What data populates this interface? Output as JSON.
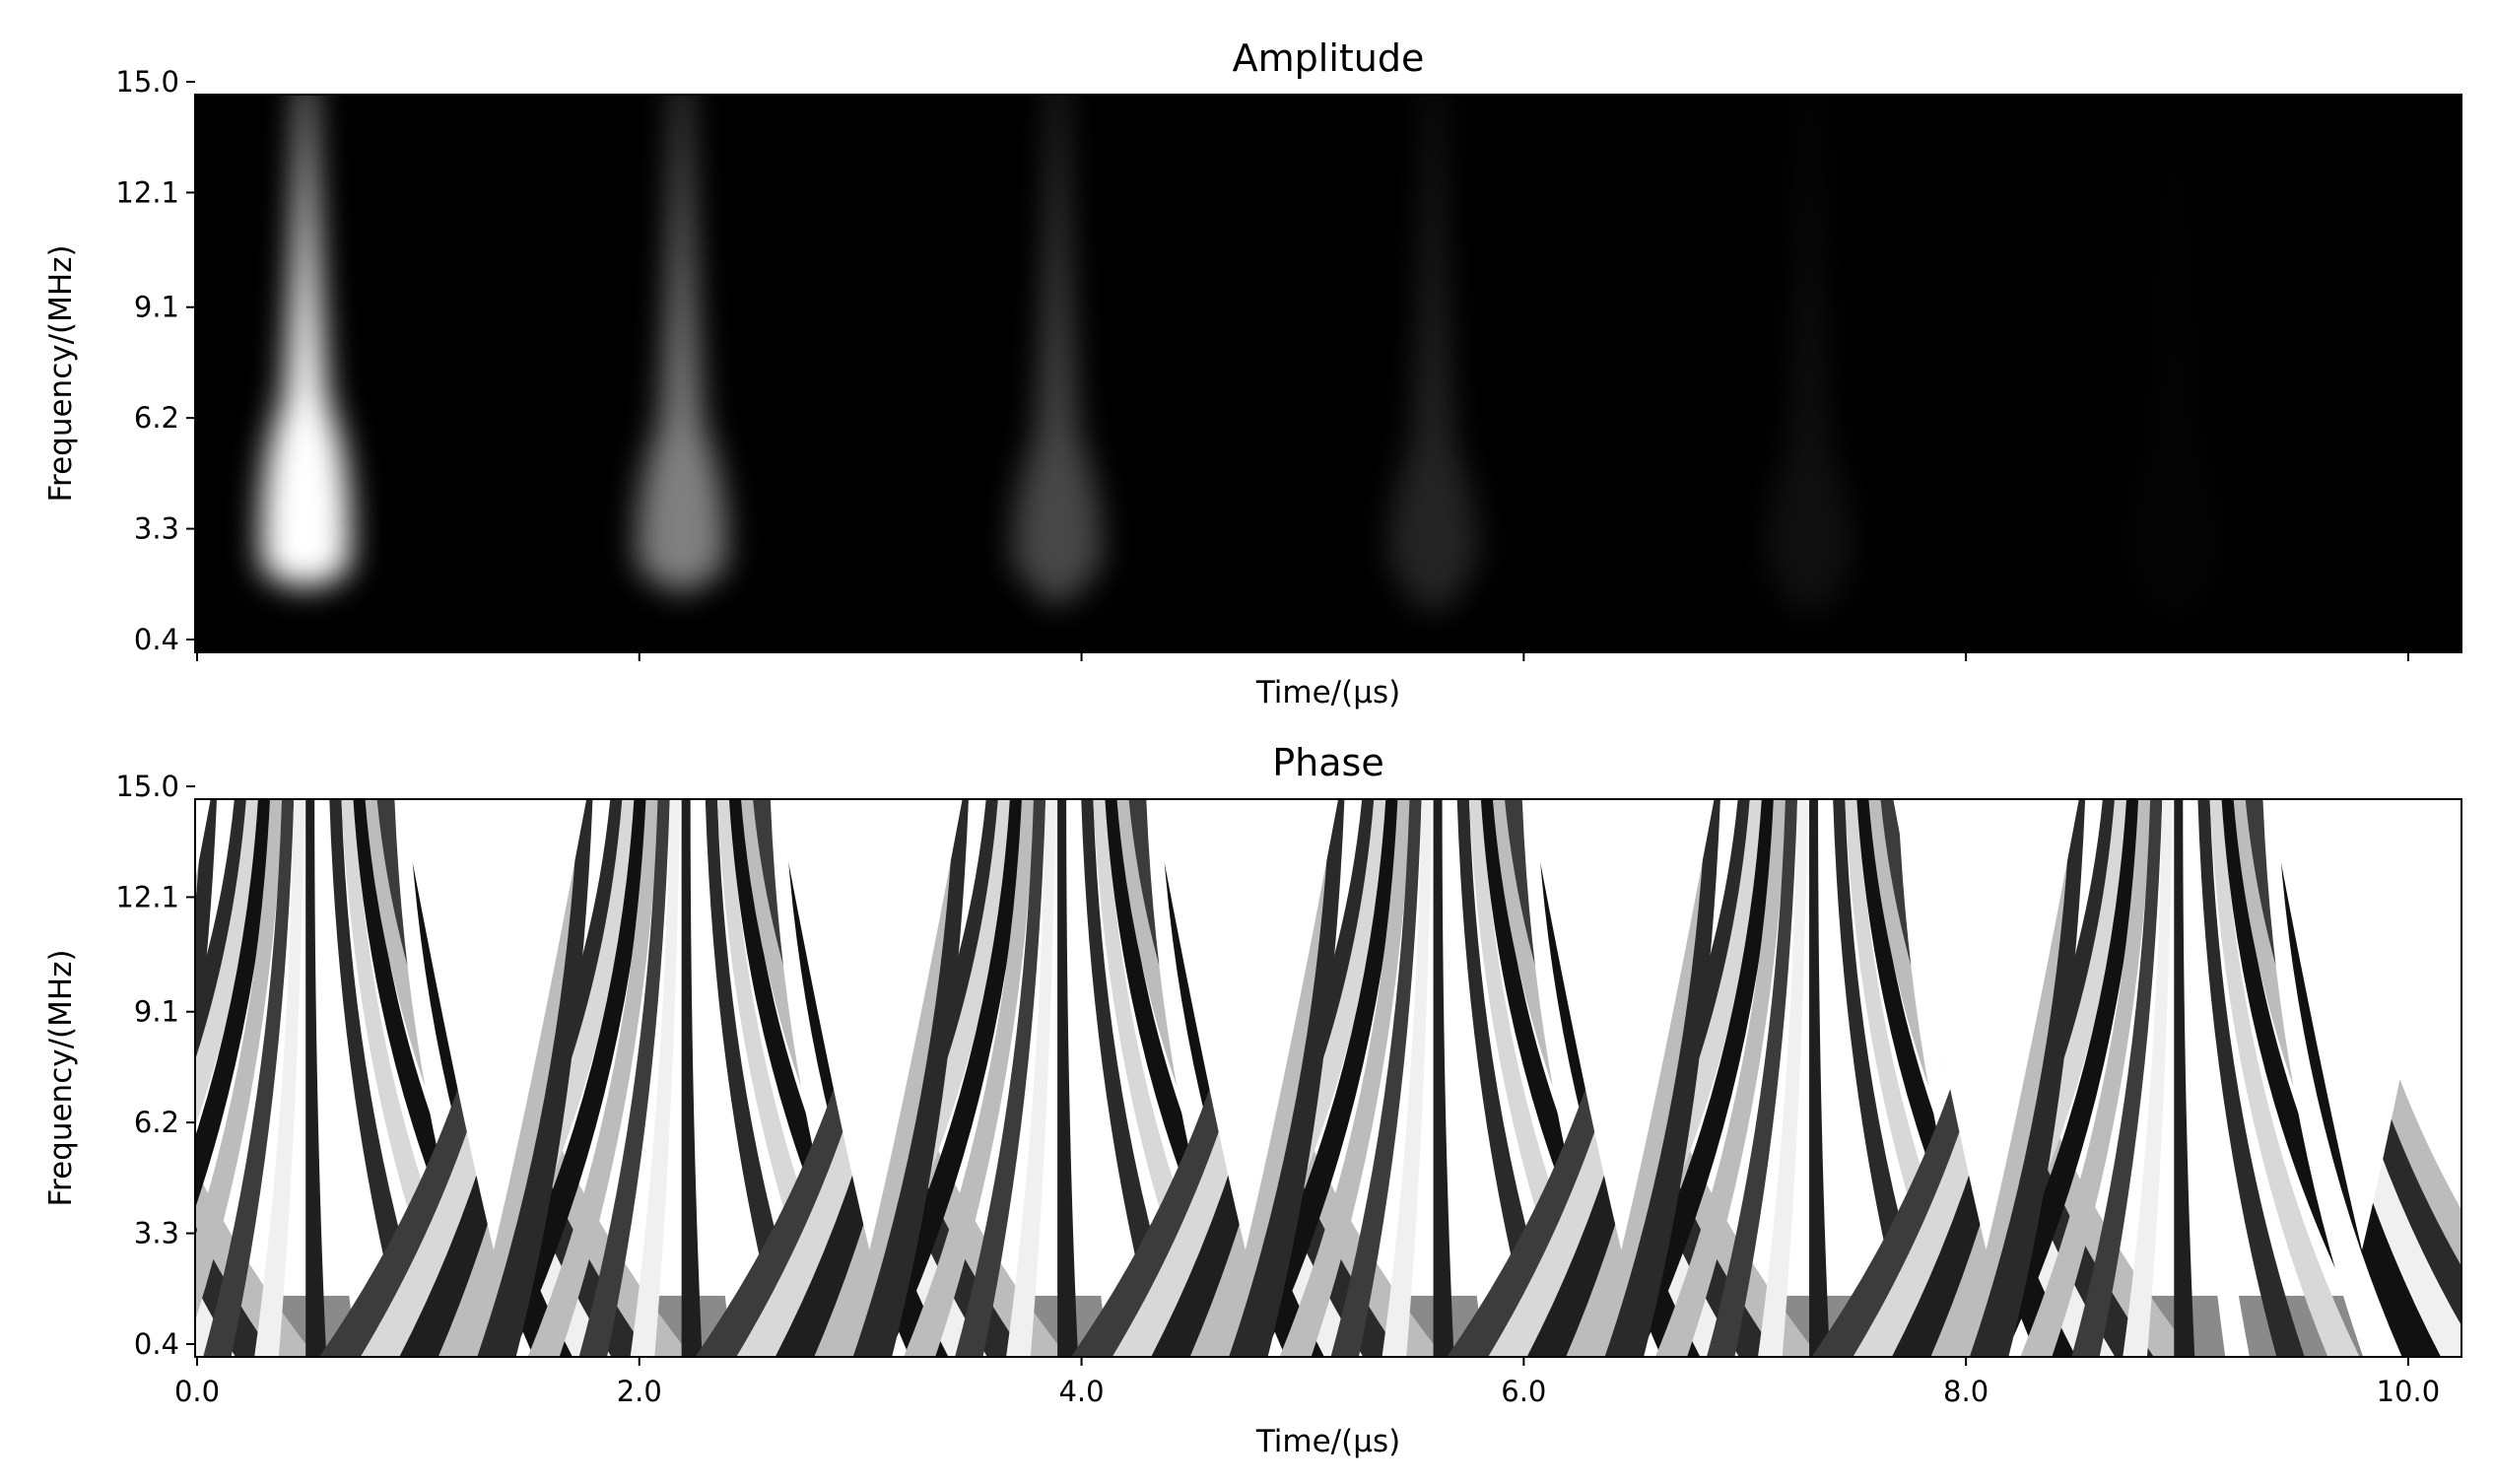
{
  "chart_data": [
    {
      "type": "heatmap",
      "title": "Amplitude",
      "xlabel": "Time/(µs)",
      "ylabel": "Frequency/(MHz)",
      "xlim": [
        0.0,
        10.25
      ],
      "ylim": [
        0.4,
        15.0
      ],
      "x_ticks": [
        0.0,
        2.0,
        4.0,
        6.0,
        8.0,
        10.0
      ],
      "x_tick_labels": [
        "",
        "",
        "",
        "",
        "",
        ""
      ],
      "y_ticks": [
        0.4,
        3.3,
        6.2,
        9.1,
        12.1,
        15.0
      ],
      "y_tick_labels": [
        "0.4",
        "3.3",
        "6.2",
        "9.1",
        "12.1",
        "15.0"
      ],
      "colormap": "gray",
      "background_color": "#000000",
      "pulses": [
        {
          "time": 0.5,
          "peak_frequency": 5.5,
          "relative_intensity": 1.0
        },
        {
          "time": 2.2,
          "peak_frequency": 4.8,
          "relative_intensity": 0.5
        },
        {
          "time": 3.9,
          "peak_frequency": 4.5,
          "relative_intensity": 0.28
        },
        {
          "time": 5.6,
          "peak_frequency": 4.3,
          "relative_intensity": 0.14
        },
        {
          "time": 7.3,
          "peak_frequency": 4.2,
          "relative_intensity": 0.06
        },
        {
          "time": 8.95,
          "peak_frequency": 4.2,
          "relative_intensity": 0.02
        }
      ]
    },
    {
      "type": "heatmap",
      "title": "Phase",
      "xlabel": "Time/(µs)",
      "ylabel": "Frequency/(MHz)",
      "xlim": [
        0.0,
        10.25
      ],
      "ylim": [
        0.4,
        15.0
      ],
      "x_ticks": [
        0.0,
        2.0,
        4.0,
        6.0,
        8.0,
        10.0
      ],
      "x_tick_labels": [
        "0.0",
        "2.0",
        "4.0",
        "6.0",
        "8.0",
        "10.0"
      ],
      "y_ticks": [
        0.4,
        3.3,
        6.2,
        9.1,
        12.1,
        15.0
      ],
      "y_tick_labels": [
        "0.4",
        "3.3",
        "6.2",
        "9.1",
        "12.1",
        "15.0"
      ],
      "colormap": "gray",
      "echo_centers": [
        0.5,
        2.2,
        3.9,
        5.6,
        7.3,
        8.95
      ],
      "echo_period": 1.7
    }
  ]
}
